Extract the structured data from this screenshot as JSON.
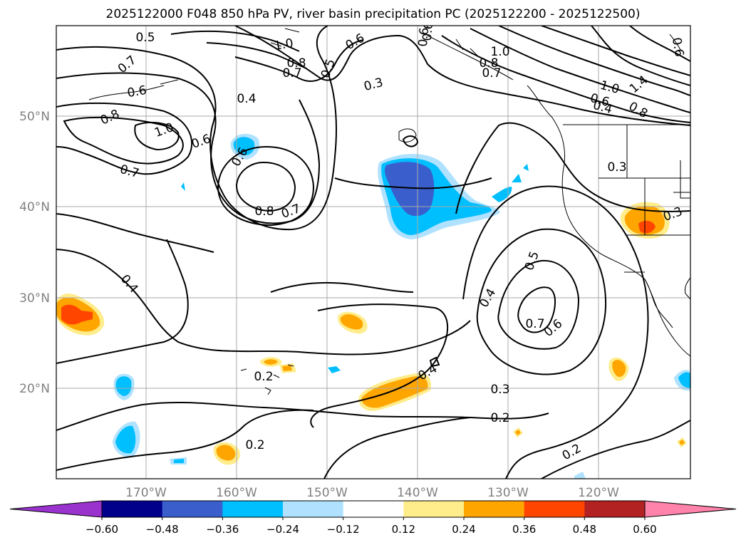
{
  "title": "2025122000 F048 850 hPa PV, river basin precipitation PC (2025122200 - 2025122500)",
  "lat_labels": [
    "50°N",
    "40°N",
    "30°N",
    "20°N"
  ],
  "lon_labels": [
    "170°W",
    "160°W",
    "150°W",
    "140°W",
    "130°W",
    "120°W"
  ],
  "colorbar": {
    "ticks": [
      "−0.60",
      "−0.48",
      "−0.36",
      "−0.24",
      "−0.12",
      "0.12",
      "0.24",
      "0.36",
      "0.48",
      "0.60"
    ],
    "colors": [
      "#9a32cd",
      "#00008b",
      "#3a5fcd",
      "#00bfff",
      "#b0e2ff",
      "#ffffff",
      "#ffec8b",
      "#ffa500",
      "#ff4500",
      "#b22222",
      "#ff83aa"
    ]
  },
  "contour_labels": [
    "0.5",
    "0.7",
    "0.6",
    "0.8",
    "1.0",
    "0.6",
    "0.7",
    "0.4",
    "0.8",
    "0.7",
    "1.0",
    "0.6",
    "0.8",
    "0.7",
    "0.6",
    "0.8",
    "0.7",
    "0.5",
    "0.6",
    "0.3",
    "1.0",
    "1.0",
    "0.6",
    "0.4",
    "0.8",
    "1.4",
    "0.3",
    "0.3",
    "0.4",
    "0.4",
    "0.5",
    "0.7",
    "0.6",
    "0.2",
    "0.4",
    "0.3",
    "0.2",
    "0.2",
    "0.2",
    "0.6",
    "0.6"
  ],
  "colors": {
    "grid": "#a9a9a9",
    "axis_label": "#808080",
    "contour": "#000000"
  }
}
